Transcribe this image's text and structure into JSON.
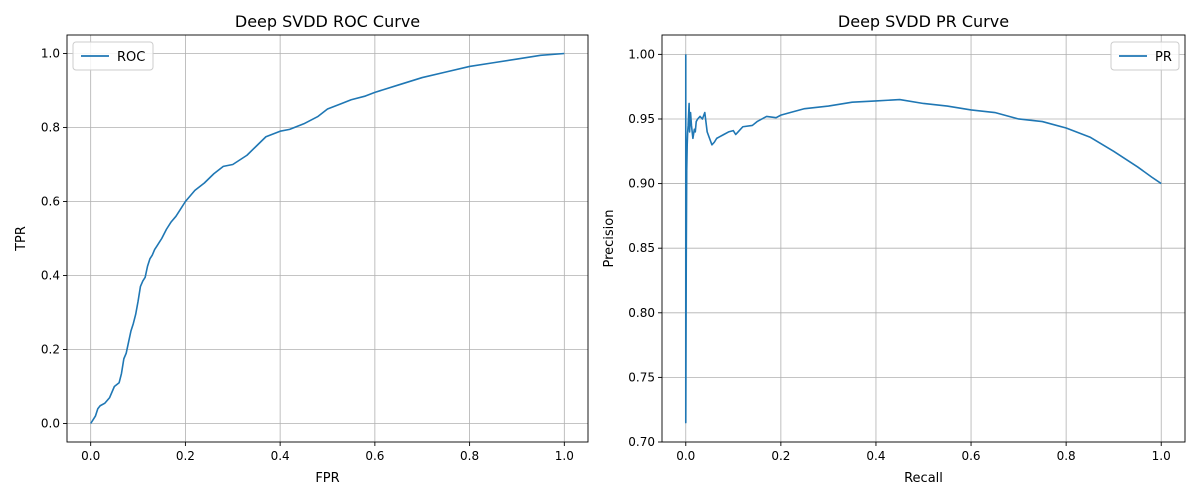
{
  "chart_data": [
    {
      "type": "line",
      "title": "Deep SVDD ROC Curve",
      "xlabel": "FPR",
      "ylabel": "TPR",
      "xlim": [
        -0.05,
        1.05
      ],
      "ylim": [
        -0.05,
        1.05
      ],
      "xticks": [
        0.0,
        0.2,
        0.4,
        0.6,
        0.8,
        1.0
      ],
      "yticks": [
        0.0,
        0.2,
        0.4,
        0.6,
        0.8,
        1.0
      ],
      "xtick_labels": [
        "0.0",
        "0.2",
        "0.4",
        "0.6",
        "0.8",
        "1.0"
      ],
      "ytick_labels": [
        "0.0",
        "0.2",
        "0.4",
        "0.6",
        "0.8",
        "1.0"
      ],
      "grid": true,
      "legend": "top-left",
      "color": "#1f77b4",
      "series": [
        {
          "name": "ROC",
          "x": [
            0.0,
            0.005,
            0.01,
            0.015,
            0.02,
            0.03,
            0.04,
            0.05,
            0.06,
            0.065,
            0.07,
            0.075,
            0.08,
            0.085,
            0.09,
            0.095,
            0.1,
            0.105,
            0.11,
            0.115,
            0.12,
            0.125,
            0.13,
            0.135,
            0.14,
            0.145,
            0.15,
            0.16,
            0.17,
            0.18,
            0.19,
            0.2,
            0.22,
            0.24,
            0.26,
            0.28,
            0.3,
            0.33,
            0.35,
            0.37,
            0.4,
            0.42,
            0.45,
            0.48,
            0.5,
            0.53,
            0.55,
            0.58,
            0.6,
            0.65,
            0.7,
            0.75,
            0.8,
            0.85,
            0.9,
            0.95,
            1.0
          ],
          "y": [
            0.0,
            0.01,
            0.02,
            0.04,
            0.048,
            0.055,
            0.07,
            0.1,
            0.11,
            0.135,
            0.175,
            0.19,
            0.22,
            0.25,
            0.27,
            0.295,
            0.33,
            0.37,
            0.385,
            0.395,
            0.425,
            0.445,
            0.455,
            0.47,
            0.48,
            0.49,
            0.5,
            0.525,
            0.545,
            0.56,
            0.58,
            0.6,
            0.63,
            0.65,
            0.675,
            0.695,
            0.7,
            0.725,
            0.75,
            0.775,
            0.79,
            0.795,
            0.81,
            0.83,
            0.85,
            0.865,
            0.875,
            0.885,
            0.895,
            0.915,
            0.935,
            0.95,
            0.965,
            0.975,
            0.985,
            0.995,
            1.0
          ]
        }
      ]
    },
    {
      "type": "line",
      "title": "Deep SVDD PR Curve",
      "xlabel": "Recall",
      "ylabel": "Precision",
      "xlim": [
        -0.05,
        1.05
      ],
      "ylim": [
        0.7,
        1.015
      ],
      "xticks": [
        0.0,
        0.2,
        0.4,
        0.6,
        0.8,
        1.0
      ],
      "yticks": [
        0.7,
        0.75,
        0.8,
        0.85,
        0.9,
        0.95,
        1.0
      ],
      "xtick_labels": [
        "0.0",
        "0.2",
        "0.4",
        "0.6",
        "0.8",
        "1.0"
      ],
      "ytick_labels": [
        "0.70",
        "0.75",
        "0.80",
        "0.85",
        "0.90",
        "0.95",
        "1.00"
      ],
      "grid": true,
      "legend": "top-right",
      "color": "#1f77b4",
      "series": [
        {
          "name": "PR",
          "x": [
            0.0,
            0.0,
            0.001,
            0.002,
            0.003,
            0.004,
            0.005,
            0.007,
            0.008,
            0.01,
            0.012,
            0.015,
            0.018,
            0.02,
            0.022,
            0.025,
            0.03,
            0.035,
            0.04,
            0.045,
            0.05,
            0.055,
            0.06,
            0.065,
            0.07,
            0.08,
            0.09,
            0.1,
            0.105,
            0.11,
            0.12,
            0.14,
            0.15,
            0.17,
            0.19,
            0.2,
            0.22,
            0.25,
            0.3,
            0.35,
            0.4,
            0.45,
            0.5,
            0.55,
            0.6,
            0.65,
            0.7,
            0.75,
            0.8,
            0.85,
            0.9,
            0.95,
            0.98,
            1.0
          ],
          "y": [
            1.0,
            0.715,
            0.84,
            0.91,
            0.93,
            0.94,
            0.945,
            0.962,
            0.94,
            0.955,
            0.945,
            0.935,
            0.942,
            0.94,
            0.948,
            0.95,
            0.952,
            0.95,
            0.955,
            0.94,
            0.935,
            0.93,
            0.932,
            0.935,
            0.936,
            0.938,
            0.94,
            0.941,
            0.938,
            0.94,
            0.944,
            0.945,
            0.948,
            0.952,
            0.951,
            0.953,
            0.955,
            0.958,
            0.96,
            0.963,
            0.964,
            0.965,
            0.962,
            0.96,
            0.957,
            0.955,
            0.95,
            0.948,
            0.943,
            0.936,
            0.925,
            0.913,
            0.905,
            0.9
          ]
        }
      ]
    }
  ]
}
